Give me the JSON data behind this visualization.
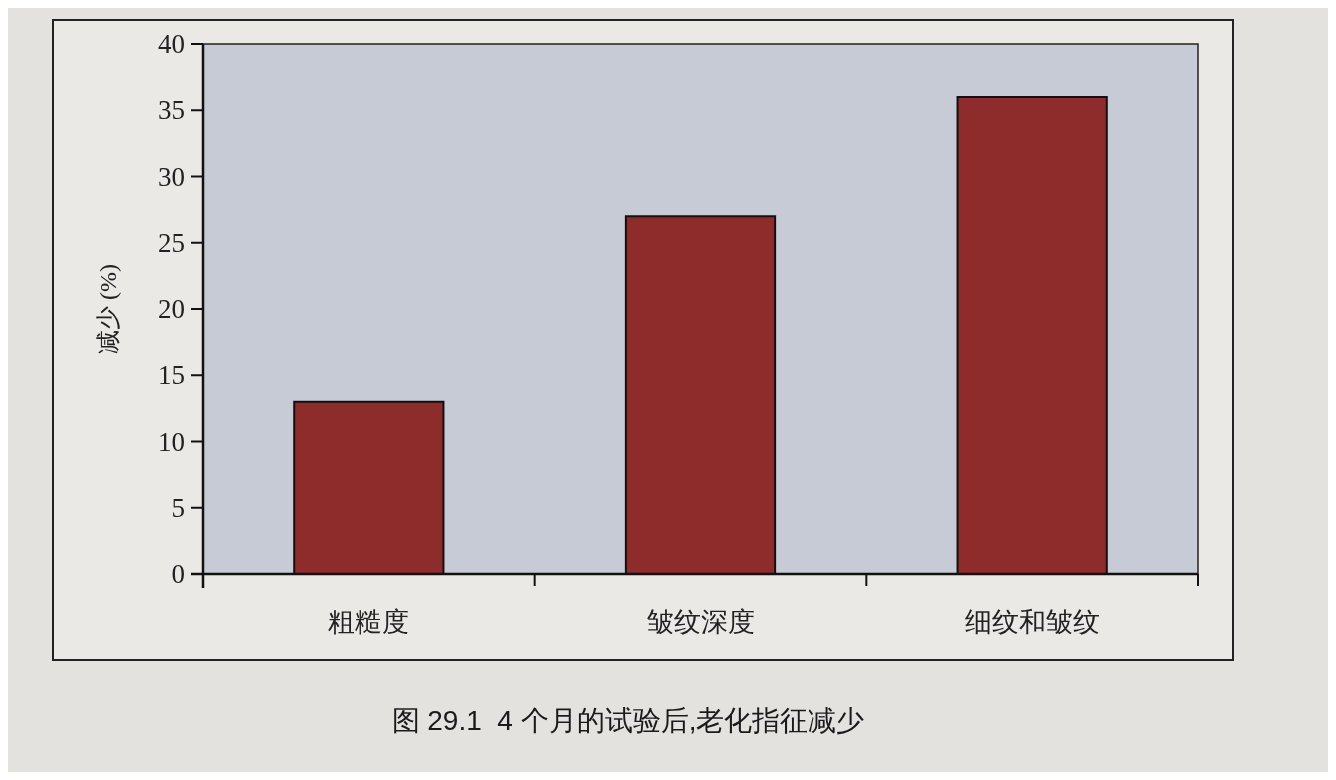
{
  "chart_data": {
    "type": "bar",
    "categories": [
      "粗糙度",
      "皱纹深度",
      "细纹和皱纹"
    ],
    "values": [
      13,
      27,
      36
    ],
    "color": "#8e2b2b",
    "ylabel": "减少 (%)",
    "ylim": [
      0,
      40
    ],
    "yticks": [
      0,
      5,
      10,
      15,
      20,
      25,
      30,
      35,
      40
    ],
    "annotations": [
      "图 29.1  4 个月的试验后,老化指征减少"
    ]
  }
}
